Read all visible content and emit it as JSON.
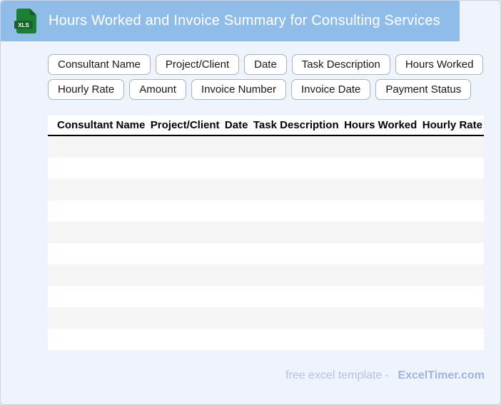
{
  "colors": {
    "banner_bg": "#90bce8",
    "page_bg": "#eef4fc",
    "icon_green": "#1e7e34",
    "icon_green_dark": "#145c26",
    "icon_band_green": "#15632b",
    "stripe_gray": "#f5f5f5",
    "table_header_rule": "#000000",
    "footer_text": "#b4c0ea",
    "footer_brand": "#a2b2e0"
  },
  "banner": {
    "title": "Hours Worked and Invoice Summary for Consulting Services",
    "file_badge": "XLS"
  },
  "chips": [
    {
      "label": "Consultant Name"
    },
    {
      "label": "Project/Client"
    },
    {
      "label": "Date"
    },
    {
      "label": "Task Description"
    },
    {
      "label": "Hours Worked"
    },
    {
      "label": "Hourly Rate"
    },
    {
      "label": "Amount"
    },
    {
      "label": "Invoice Number"
    },
    {
      "label": "Invoice Date"
    },
    {
      "label": "Payment Status"
    }
  ],
  "table": {
    "columns": [
      "Consultant Name",
      "Project/Client",
      "Date",
      "Task Description",
      "Hours Worked",
      "Hourly Rate"
    ],
    "empty_row_count": 10
  },
  "footer": {
    "prefix": "free excel template -",
    "brand": "ExcelTimer.com"
  }
}
